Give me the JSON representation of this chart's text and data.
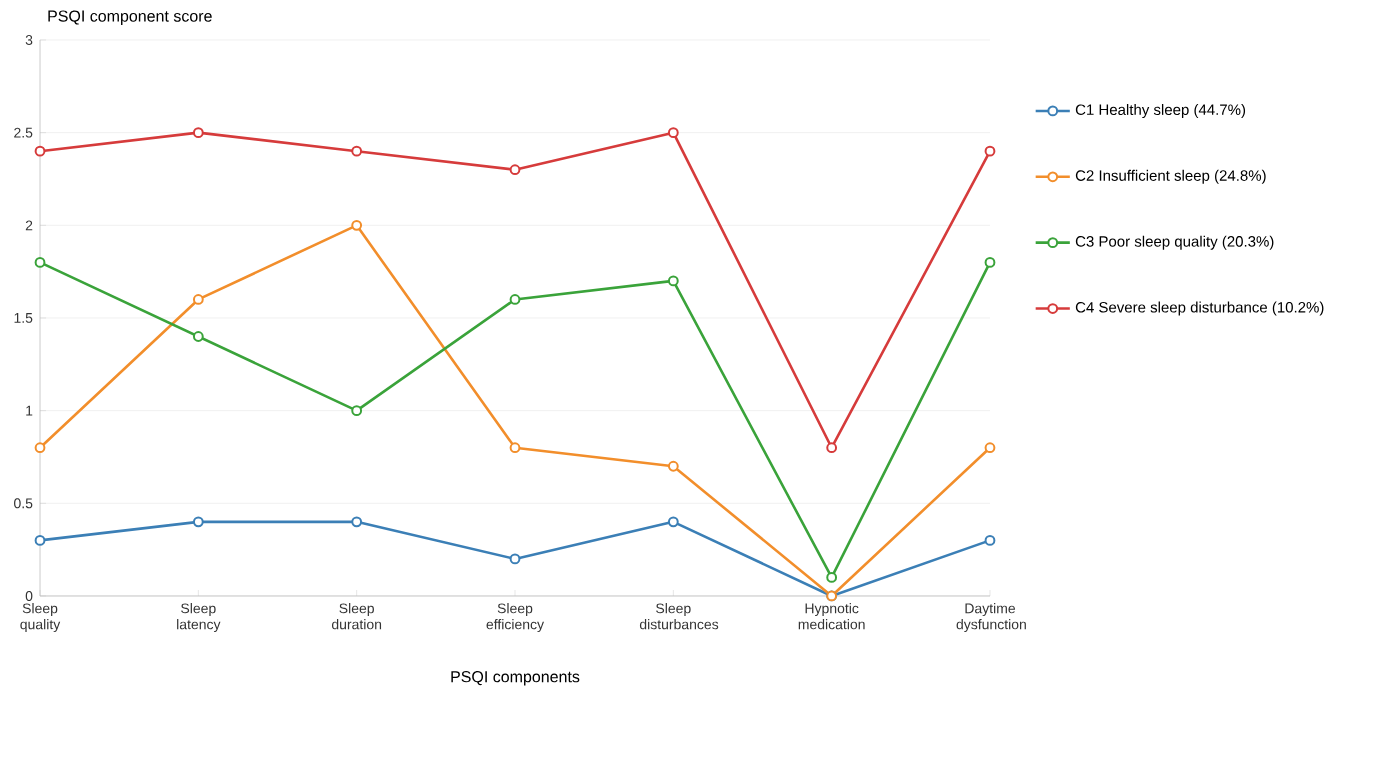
{
  "chart_data": {
    "type": "line",
    "xlabel": "PSQI components",
    "ylabel": "PSQI component score",
    "categories": [
      "Sleep quality",
      "Sleep latency",
      "Sleep duration",
      "Sleep efficiency",
      "Sleep disturbances",
      "Hypnotic medication",
      "Daytime dysfunction"
    ],
    "series": [
      {
        "name": "C1 Healthy sleep (44.7%)",
        "color": "#3b7fb6",
        "values": [
          0.3,
          0.4,
          0.4,
          0.2,
          0.4,
          0,
          0.3
        ]
      },
      {
        "name": "C2 Insufficient sleep (24.8%)",
        "color": "#f28e2b",
        "values": [
          0.8,
          1.6,
          2.0,
          0.8,
          0.7,
          0,
          0.8
        ]
      },
      {
        "name": "C3 Poor sleep quality (20.3%)",
        "color": "#3aa33a",
        "values": [
          1.8,
          1.4,
          1.0,
          1.6,
          1.7,
          0.1,
          1.8
        ]
      },
      {
        "name": "C4 Severe sleep disturbance (10.2%)",
        "color": "#d63b3b",
        "values": [
          2.4,
          2.5,
          2.4,
          2.3,
          2.5,
          0.8,
          2.4
        ]
      }
    ],
    "ylim": [
      0,
      3
    ],
    "yticks": [
      0,
      0.5,
      1,
      1.5,
      2,
      2.5,
      3
    ],
    "grid": "y",
    "legend": "right",
    "marker": "circle",
    "line_style": "solid"
  }
}
